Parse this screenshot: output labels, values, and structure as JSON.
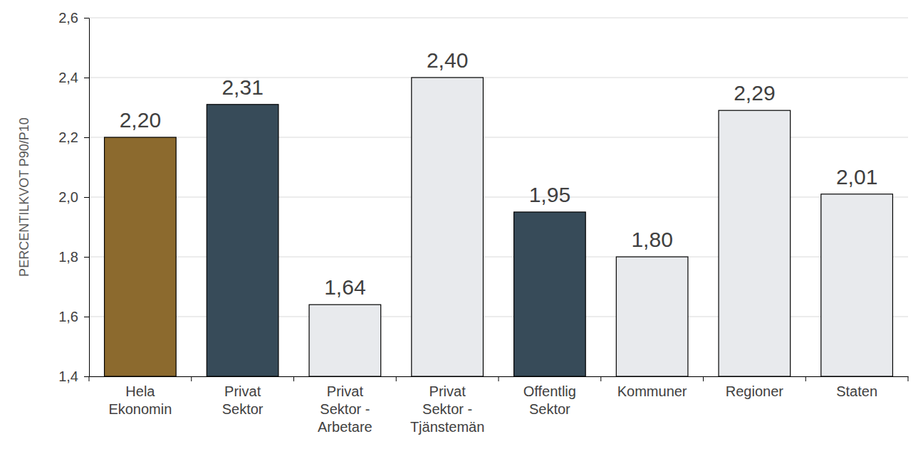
{
  "chart_data": {
    "type": "bar",
    "y_label": "PERCENTILKVOT P90/P10",
    "categories": [
      "Hela\nEkonomin",
      "Privat\nSektor",
      "Privat\nSektor -\nArbetare",
      "Privat\nSektor -\nTjänstemän",
      "Offentlig\nSektor",
      "Kommuner",
      "Regioner",
      "Staten"
    ],
    "values": [
      2.2,
      2.31,
      1.64,
      2.4,
      1.95,
      1.8,
      2.29,
      2.01
    ],
    "value_labels": [
      "2,20",
      "2,31",
      "1,64",
      "2,40",
      "1,95",
      "1,80",
      "2,29",
      "2,01"
    ],
    "colors": [
      "#8c6a2e",
      "#374b59",
      "#e8eaed",
      "#e8eaed",
      "#374b59",
      "#e8eaed",
      "#e8eaed",
      "#e8eaed"
    ],
    "ylim": [
      1.4,
      2.6
    ],
    "yticks": [
      {
        "value": 1.4,
        "label": "1,4"
      },
      {
        "value": 1.6,
        "label": "1,6"
      },
      {
        "value": 1.8,
        "label": "1,8"
      },
      {
        "value": 2.0,
        "label": "2,0"
      },
      {
        "value": 2.2,
        "label": "2,2"
      },
      {
        "value": 2.4,
        "label": "2,4"
      },
      {
        "value": 2.6,
        "label": "2,6"
      }
    ],
    "grid": true,
    "data_labels": true
  }
}
